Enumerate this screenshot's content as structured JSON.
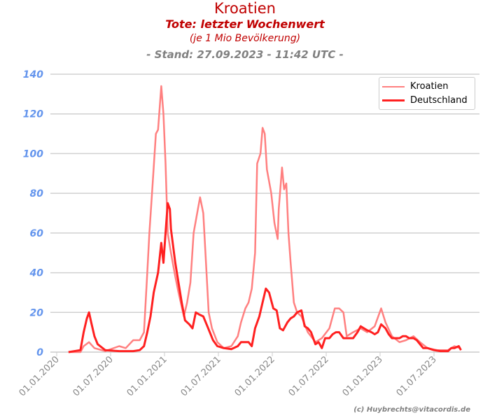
{
  "chart_data": {
    "type": "line",
    "title": "Kroatien",
    "subtitle": "Tote: letzter Wochenwert",
    "subtitle2": "(je 1 Mio Bevölkerung)",
    "stand": "- Stand: 27.09.2023 - 11:42 UTC -",
    "credit": "(c) Huybrechts@vitacordis.de",
    "x_unit": "years since 01.01.2020",
    "xlim": [
      -0.08,
      3.95
    ],
    "ylim": [
      0,
      140
    ],
    "yticks": [
      0,
      20,
      40,
      60,
      80,
      100,
      120,
      140
    ],
    "ytick_labels": [
      "0",
      "20",
      "40",
      "60",
      "80",
      "100",
      "120",
      "140"
    ],
    "xticks": [
      0,
      0.5,
      1,
      1.5,
      2,
      2.5,
      3,
      3.5
    ],
    "xtick_labels": [
      "01.01.2020",
      "01.07.2020",
      "01.01.2021",
      "01.07.2021",
      "01.01.2022",
      "01.07.2022",
      "01.01.2023",
      "01.07.2023"
    ],
    "grid": true,
    "legend_position": "top-right",
    "series": [
      {
        "name": "Kroatien",
        "color": "#ff8080",
        "width": 2.5,
        "x": [
          0.11,
          0.22,
          0.25,
          0.3,
          0.35,
          0.45,
          0.58,
          0.64,
          0.71,
          0.77,
          0.81,
          0.84,
          0.86,
          0.89,
          0.92,
          0.94,
          0.97,
          0.99,
          1.01,
          1.03,
          1.06,
          1.1,
          1.13,
          1.18,
          1.21,
          1.24,
          1.27,
          1.31,
          1.33,
          1.36,
          1.38,
          1.41,
          1.44,
          1.49,
          1.55,
          1.62,
          1.68,
          1.71,
          1.75,
          1.78,
          1.81,
          1.84,
          1.86,
          1.89,
          1.91,
          1.93,
          1.95,
          1.99,
          2.02,
          2.05,
          2.06,
          2.09,
          2.11,
          2.13,
          2.15,
          2.17,
          2.2,
          2.23,
          2.27,
          2.33,
          2.4,
          2.46,
          2.53,
          2.58,
          2.62,
          2.66,
          2.69,
          2.75,
          2.82,
          2.88,
          2.95,
          3.01,
          3.05,
          3.11,
          3.18,
          3.24,
          3.31,
          3.37,
          3.44,
          3.53,
          3.63,
          3.69,
          3.74
        ],
        "y": [
          0,
          0,
          3,
          5,
          2,
          0.5,
          3,
          2,
          6,
          6,
          10,
          40,
          60,
          85,
          110,
          112,
          134,
          120,
          95,
          60,
          50,
          38,
          30,
          18,
          25,
          35,
          60,
          72,
          78,
          70,
          50,
          20,
          12,
          5,
          2,
          3,
          8,
          15,
          22,
          25,
          32,
          50,
          95,
          100,
          113,
          110,
          92,
          80,
          65,
          57,
          72,
          93,
          82,
          85,
          60,
          45,
          25,
          20,
          18,
          10,
          5,
          7,
          12,
          22,
          22,
          20,
          8,
          10,
          12,
          10,
          13,
          22,
          15,
          8,
          5,
          6,
          8,
          5,
          2,
          1,
          1,
          3,
          2
        ]
      },
      {
        "name": "Deutschland",
        "color": "#ff2020",
        "width": 3,
        "x": [
          0.11,
          0.22,
          0.25,
          0.28,
          0.3,
          0.32,
          0.35,
          0.38,
          0.45,
          0.58,
          0.71,
          0.77,
          0.81,
          0.84,
          0.87,
          0.9,
          0.94,
          0.97,
          0.99,
          1.01,
          1.03,
          1.05,
          1.06,
          1.1,
          1.13,
          1.16,
          1.19,
          1.23,
          1.26,
          1.29,
          1.32,
          1.36,
          1.39,
          1.42,
          1.45,
          1.49,
          1.55,
          1.62,
          1.68,
          1.71,
          1.75,
          1.78,
          1.81,
          1.84,
          1.88,
          1.91,
          1.94,
          1.97,
          2.01,
          2.04,
          2.07,
          2.1,
          2.14,
          2.17,
          2.2,
          2.23,
          2.27,
          2.3,
          2.33,
          2.36,
          2.4,
          2.43,
          2.46,
          2.49,
          2.53,
          2.56,
          2.59,
          2.62,
          2.66,
          2.69,
          2.72,
          2.75,
          2.79,
          2.82,
          2.85,
          2.88,
          2.92,
          2.95,
          2.98,
          3.01,
          3.05,
          3.08,
          3.11,
          3.14,
          3.18,
          3.21,
          3.24,
          3.27,
          3.31,
          3.34,
          3.37,
          3.4,
          3.44,
          3.5,
          3.56,
          3.63,
          3.66,
          3.69,
          3.73,
          3.75
        ],
        "y": [
          0,
          1,
          10,
          17,
          20,
          15,
          8,
          4,
          1,
          0.5,
          0.5,
          1,
          3,
          10,
          18,
          30,
          40,
          55,
          45,
          60,
          75,
          72,
          62,
          45,
          35,
          25,
          16,
          14,
          12,
          20,
          19,
          18,
          14,
          10,
          6,
          3,
          2,
          1.5,
          3,
          5,
          5,
          5,
          3,
          12,
          18,
          25,
          32,
          30,
          22,
          21,
          12,
          11,
          15,
          17,
          18,
          20,
          21,
          13,
          12,
          10,
          4,
          5,
          2,
          7,
          7,
          9,
          10,
          10,
          7,
          7,
          7,
          7,
          10,
          13,
          12,
          11,
          10,
          9,
          10,
          14,
          12,
          9,
          7,
          7,
          7,
          8,
          8,
          7,
          7,
          6,
          4,
          2,
          2,
          1,
          0.5,
          0.5,
          2,
          2,
          3,
          1
        ]
      }
    ]
  }
}
